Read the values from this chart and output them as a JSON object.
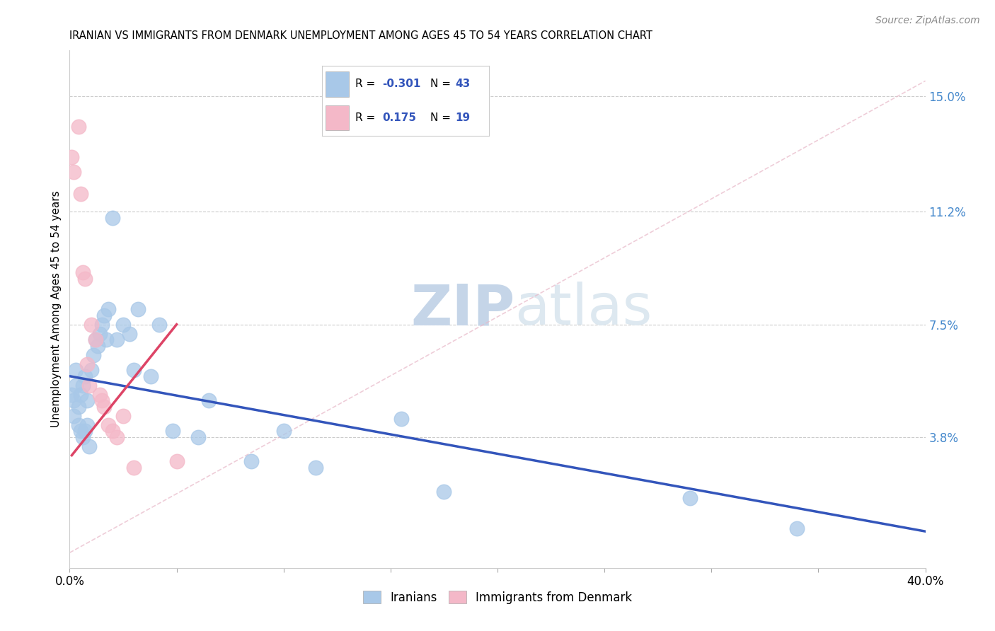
{
  "title": "IRANIAN VS IMMIGRANTS FROM DENMARK UNEMPLOYMENT AMONG AGES 45 TO 54 YEARS CORRELATION CHART",
  "source_text": "Source: ZipAtlas.com",
  "ylabel": "Unemployment Among Ages 45 to 54 years",
  "xlim": [
    0.0,
    0.4
  ],
  "ylim": [
    -0.005,
    0.165
  ],
  "ytick_positions": [
    0.038,
    0.075,
    0.112,
    0.15
  ],
  "ytick_labels": [
    "3.8%",
    "7.5%",
    "11.2%",
    "15.0%"
  ],
  "legend_r_blue": "-0.301",
  "legend_n_blue": "43",
  "legend_r_pink": "0.175",
  "legend_n_pink": "19",
  "blue_color": "#a8c8e8",
  "pink_color": "#f4b8c8",
  "trendline_blue_color": "#3355bb",
  "trendline_pink_color": "#dd4466",
  "diag_color": "#e8b8c8",
  "watermark_zip": "ZIP",
  "watermark_atlas": "atlas",
  "watermark_color": "#d0dff0",
  "iranians_x": [
    0.001,
    0.002,
    0.002,
    0.003,
    0.003,
    0.004,
    0.004,
    0.005,
    0.005,
    0.006,
    0.006,
    0.007,
    0.007,
    0.008,
    0.008,
    0.009,
    0.01,
    0.011,
    0.012,
    0.013,
    0.014,
    0.015,
    0.016,
    0.017,
    0.018,
    0.02,
    0.022,
    0.025,
    0.028,
    0.03,
    0.032,
    0.038,
    0.042,
    0.048,
    0.06,
    0.065,
    0.085,
    0.1,
    0.115,
    0.155,
    0.175,
    0.29,
    0.34
  ],
  "iranians_y": [
    0.052,
    0.05,
    0.045,
    0.06,
    0.055,
    0.048,
    0.042,
    0.052,
    0.04,
    0.055,
    0.038,
    0.04,
    0.058,
    0.05,
    0.042,
    0.035,
    0.06,
    0.065,
    0.07,
    0.068,
    0.072,
    0.075,
    0.078,
    0.07,
    0.08,
    0.11,
    0.07,
    0.075,
    0.072,
    0.06,
    0.08,
    0.058,
    0.075,
    0.04,
    0.038,
    0.05,
    0.03,
    0.04,
    0.028,
    0.044,
    0.02,
    0.018,
    0.008
  ],
  "denmark_x": [
    0.001,
    0.002,
    0.004,
    0.005,
    0.006,
    0.007,
    0.008,
    0.009,
    0.01,
    0.012,
    0.014,
    0.015,
    0.016,
    0.018,
    0.02,
    0.022,
    0.025,
    0.03,
    0.05
  ],
  "denmark_y": [
    0.13,
    0.125,
    0.14,
    0.118,
    0.092,
    0.09,
    0.062,
    0.055,
    0.075,
    0.07,
    0.052,
    0.05,
    0.048,
    0.042,
    0.04,
    0.038,
    0.045,
    0.028,
    0.03
  ],
  "blue_trendline_x": [
    0.0,
    0.4
  ],
  "blue_trendline_y": [
    0.058,
    0.007
  ],
  "pink_trendline_x": [
    0.001,
    0.05
  ],
  "pink_trendline_y": [
    0.032,
    0.075
  ]
}
